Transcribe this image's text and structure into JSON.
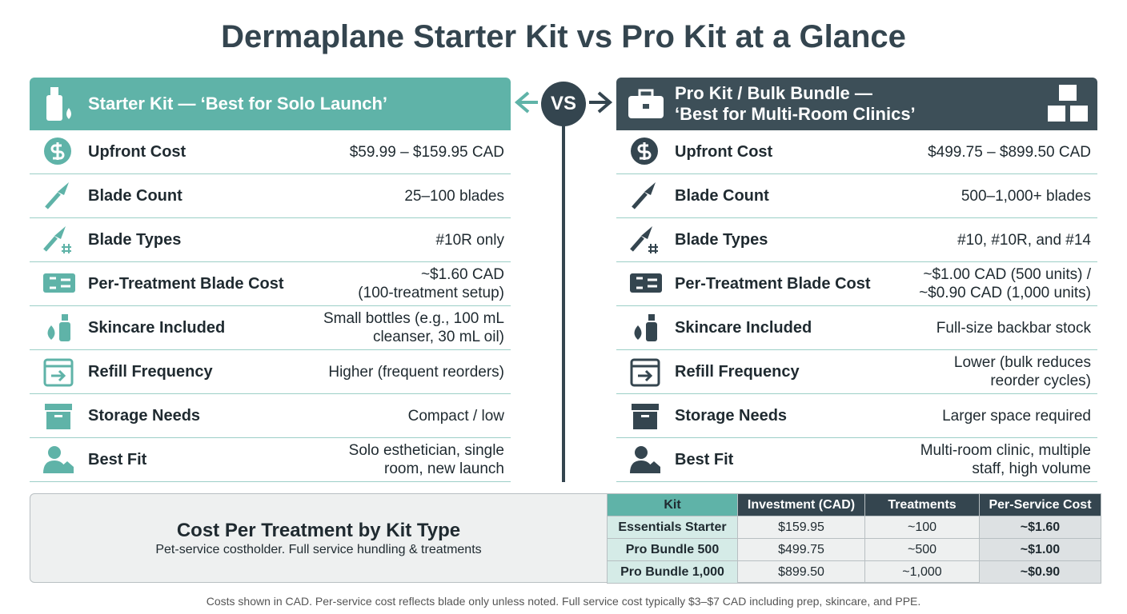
{
  "title": "Dermaplane Starter Kit vs Pro Kit at a Glance",
  "vs": "VS",
  "starter": {
    "header": "Starter Kit — ‘Best for Solo Launch’",
    "rows": [
      {
        "label": "Upfront Cost",
        "value": "$59.99 – $159.95 CAD"
      },
      {
        "label": "Blade Count",
        "value": "25–100 blades"
      },
      {
        "label": "Blade Types",
        "value": "#10R only"
      },
      {
        "label": "Per-Treatment Blade Cost",
        "value": "~$1.60 CAD\n(100-treatment setup)"
      },
      {
        "label": "Skincare Included",
        "value": "Small bottles (e.g., 100 mL\ncleanser, 30 mL oil)"
      },
      {
        "label": "Refill Frequency",
        "value": "Higher (frequent reorders)"
      },
      {
        "label": "Storage Needs",
        "value": "Compact / low"
      },
      {
        "label": "Best Fit",
        "value": "Solo esthetician, single\nroom, new launch"
      }
    ]
  },
  "pro": {
    "header": "Pro Kit / Bulk Bundle —\n‘Best for Multi-Room Clinics’",
    "rows": [
      {
        "label": "Upfront Cost",
        "value": "$499.75 – $899.50 CAD"
      },
      {
        "label": "Blade Count",
        "value": "500–1,000+ blades"
      },
      {
        "label": "Blade Types",
        "value": "#10, #10R, and #14"
      },
      {
        "label": "Per-Treatment Blade Cost",
        "value": "~$1.00 CAD (500 units) /\n~$0.90 CAD (1,000 units)"
      },
      {
        "label": "Skincare Included",
        "value": "Full-size backbar stock"
      },
      {
        "label": "Refill Frequency",
        "value": "Lower (bulk reduces\nreorder cycles)"
      },
      {
        "label": "Storage Needs",
        "value": "Larger space required"
      },
      {
        "label": "Best Fit",
        "value": "Multi-room clinic, multiple\nstaff, high volume"
      }
    ]
  },
  "summary": {
    "title": "Cost Per Treatment by Kit Type",
    "subtitle": "Pet-service costholder. Full service hundling & treatments",
    "table": {
      "headers": [
        "Kit",
        "Investment (CAD)",
        "Treatments",
        "Per-Service Cost"
      ],
      "rows": [
        [
          "Essentials Starter",
          "$159.95",
          "~100",
          "~$1.60"
        ],
        [
          "Pro Bundle 500",
          "$499.75",
          "~500",
          "~$1.00"
        ],
        [
          "Pro Bundle 1,000",
          "$899.50",
          "~1,000",
          "~$0.90"
        ]
      ]
    }
  },
  "footnote": "Costs shown in CAD. Per-service cost reflects blade only unless noted. Full service cost typically $3–$7 CAD including prep, skincare, and PPE."
}
